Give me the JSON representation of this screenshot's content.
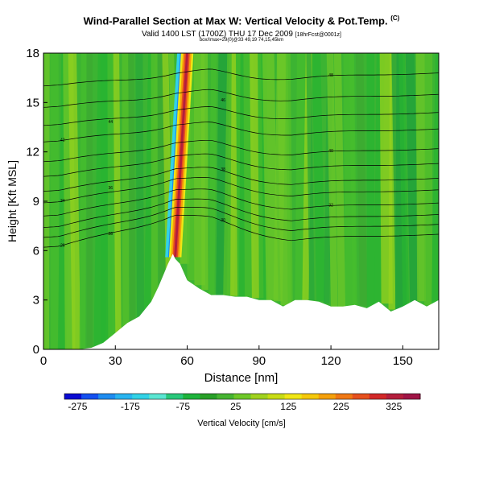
{
  "header": {
    "title": "Wind-Parallel Section at Max W: Vertical Velocity & Pot.Temp.",
    "title_mark": "(C)",
    "subtitle": "Valid 1400 LST (1700Z) THU 17 Dec 2009",
    "subtitle_small": "[18hrFcst@0001z]",
    "info_line": "box/Imax=29(0)@33 49,19 74,15,45km"
  },
  "chart_data": {
    "type": "heatmap",
    "title": "Wind-Parallel Section at Max W: Vertical Velocity & Pot.Temp.",
    "xlabel": "Distance [nm]",
    "ylabel": "Height [Kft MSL]",
    "xlim": [
      0,
      165
    ],
    "ylim": [
      0,
      18
    ],
    "x_ticks": [
      0,
      30,
      60,
      90,
      120,
      150
    ],
    "y_ticks": [
      0,
      3,
      6,
      9,
      12,
      15,
      18
    ],
    "terrain_x": [
      0,
      5,
      10,
      15,
      20,
      25,
      30,
      35,
      40,
      45,
      48,
      50,
      52,
      54,
      55,
      57,
      60,
      65,
      70,
      75,
      80,
      85,
      90,
      95,
      100,
      105,
      110,
      115,
      120,
      125,
      130,
      135,
      140,
      145,
      150,
      155,
      160,
      165
    ],
    "terrain_height": [
      0,
      0,
      0,
      0,
      0.1,
      0.4,
      1,
      1.6,
      2,
      2.9,
      3.8,
      4.5,
      5.2,
      5.8,
      5.5,
      5.2,
      4.2,
      3.7,
      3.3,
      3.3,
      3.2,
      3.2,
      3,
      3,
      2.6,
      3,
      3,
      2.9,
      2.6,
      2.6,
      2.7,
      2.5,
      2.9,
      2.3,
      2.6,
      3,
      2.6,
      3
    ],
    "updraft_core": {
      "x_at_6kft": 55,
      "x_at_18kft": 60,
      "max_vertical_velocity_cm_s": 325
    },
    "downdraft_core": {
      "x_at_6kft": 53,
      "x_at_18kft": 58,
      "min_vertical_velocity_cm_s": -175
    },
    "theta_isentropes": [
      {
        "label": "26",
        "base_height": 6.2
      },
      {
        "label": "28",
        "base_height": 6.8
      },
      {
        "label": "30",
        "base_height": 7.4
      },
      {
        "label": "32",
        "base_height": 8.1
      },
      {
        "label": "34",
        "base_height": 8.9
      },
      {
        "label": "36",
        "base_height": 9.6
      },
      {
        "label": "38",
        "base_height": 10.5
      },
      {
        "label": "40",
        "base_height": 11.4
      },
      {
        "label": "42",
        "base_height": 12.6
      },
      {
        "label": "44",
        "base_height": 13.6
      },
      {
        "label": "46",
        "base_height": 14.7
      },
      {
        "label": "48",
        "base_height": 16.0
      }
    ],
    "colorbar": {
      "label": "Vertical Velocity [cm/s]",
      "range": [
        -300,
        375
      ],
      "tick_labels": [
        "-275",
        "-175",
        "-75",
        "25",
        "125",
        "225",
        "325"
      ],
      "colors": [
        "#0a0ad2",
        "#1450f0",
        "#1e8cf0",
        "#28b4f0",
        "#32d2e6",
        "#5ae6d2",
        "#28c87a",
        "#1eb43c",
        "#28a028",
        "#46b432",
        "#6ec828",
        "#a0d21e",
        "#c8dc14",
        "#f0e614",
        "#f5c80a",
        "#f5a00a",
        "#f07814",
        "#e6501e",
        "#d22828",
        "#b41e3c",
        "#a01446"
      ]
    }
  }
}
